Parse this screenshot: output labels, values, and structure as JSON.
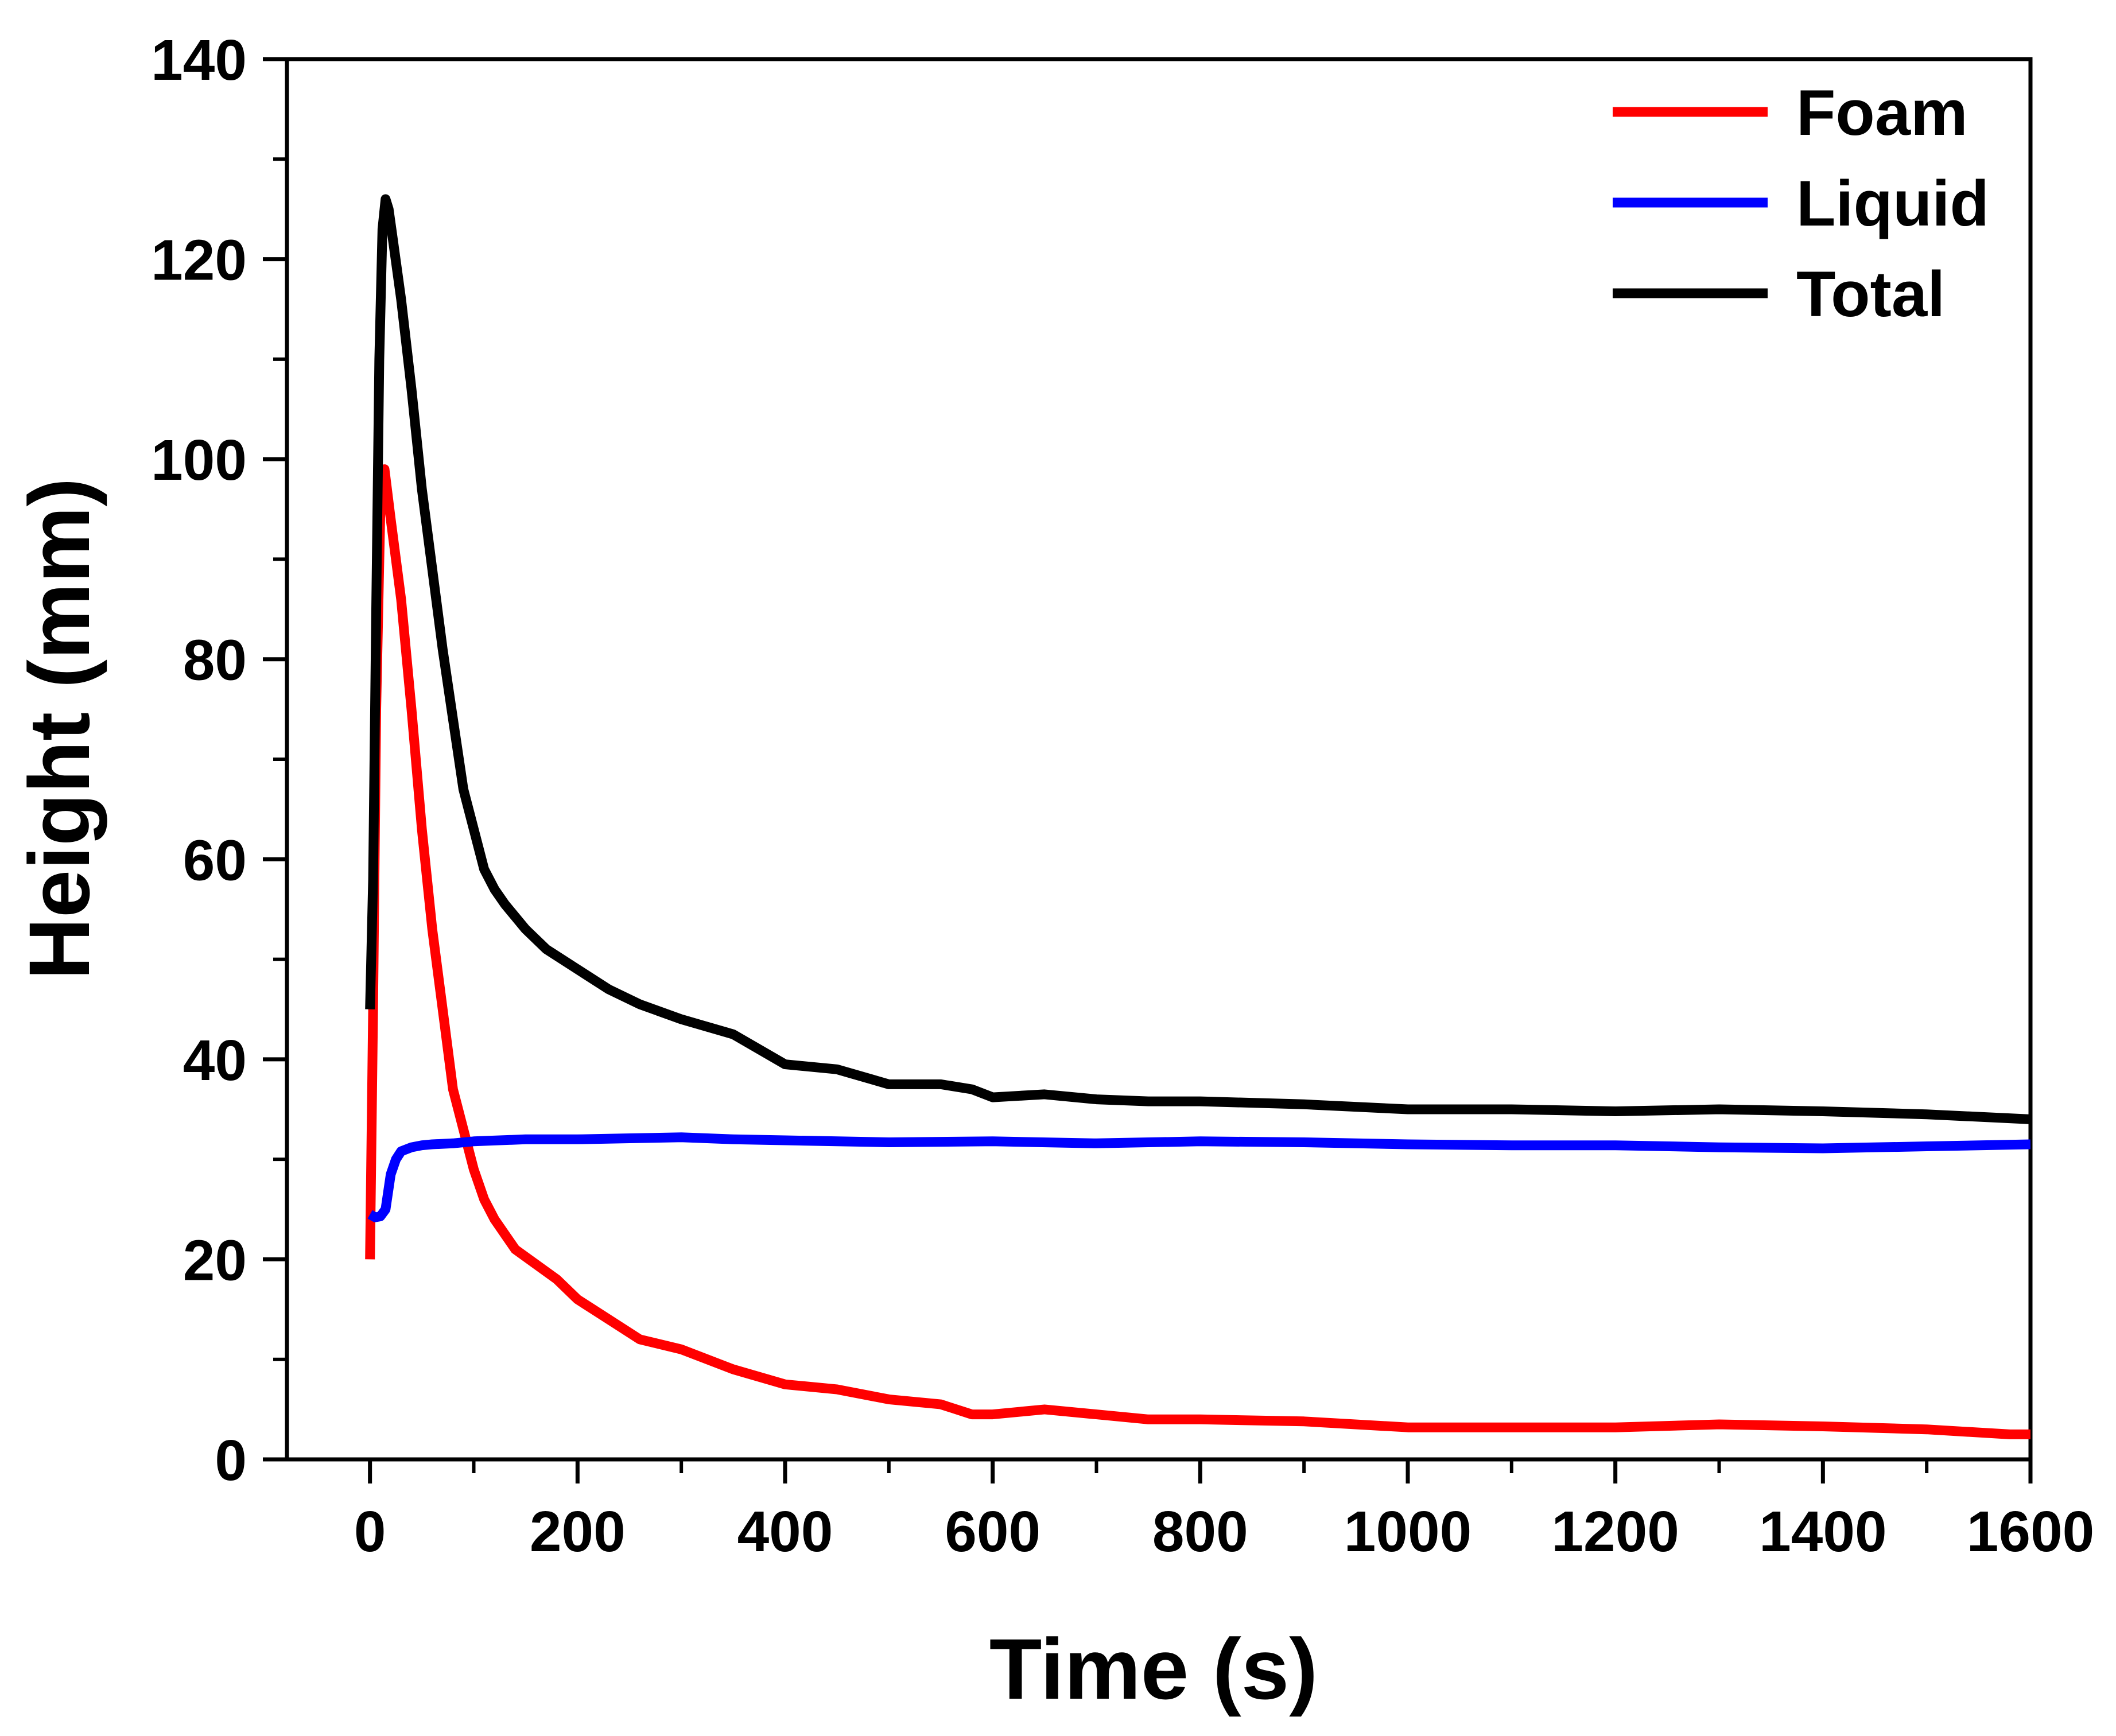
{
  "chart_data": {
    "type": "line",
    "title": "",
    "xlabel": "Time (s)",
    "ylabel": "Height (mm)",
    "xlim": [
      -80,
      1600
    ],
    "ylim": [
      0,
      140
    ],
    "x_ticks": [
      0,
      200,
      400,
      600,
      800,
      1000,
      1200,
      1400,
      1600
    ],
    "x_tick_labels": [
      "0",
      "200",
      "400",
      "600",
      "800",
      "1000",
      "1200",
      "1400",
      "1600"
    ],
    "y_ticks": [
      0,
      20,
      40,
      60,
      80,
      100,
      120,
      140
    ],
    "y_tick_labels": [
      "0",
      "20",
      "40",
      "60",
      "80",
      "100",
      "120",
      "140"
    ],
    "grid": false,
    "legend_position": "top-right",
    "series": [
      {
        "name": "Foam",
        "color": "#ff0000",
        "x": [
          0,
          3,
          6,
          10,
          14,
          20,
          30,
          40,
          50,
          60,
          70,
          80,
          90,
          100,
          110,
          120,
          140,
          160,
          180,
          200,
          230,
          260,
          300,
          350,
          400,
          450,
          500,
          550,
          580,
          600,
          650,
          700,
          750,
          800,
          900,
          1000,
          1100,
          1200,
          1300,
          1400,
          1500,
          1580,
          1600
        ],
        "y": [
          20,
          45,
          75,
          95,
          99,
          94,
          86,
          75,
          63,
          53,
          45,
          37,
          33,
          29,
          26,
          24,
          21,
          19.5,
          18,
          16,
          14,
          12,
          11,
          9,
          7.5,
          7,
          6,
          5.5,
          4.5,
          4.5,
          5,
          4.5,
          4,
          4,
          3.8,
          3.2,
          3.2,
          3.2,
          3.5,
          3.3,
          3,
          2.5,
          2.5
        ]
      },
      {
        "name": "Liquid",
        "color": "#0000ff",
        "x": [
          0,
          5,
          10,
          15,
          20,
          25,
          30,
          40,
          50,
          60,
          80,
          100,
          150,
          200,
          250,
          300,
          350,
          400,
          500,
          600,
          700,
          800,
          900,
          1000,
          1100,
          1200,
          1300,
          1400,
          1500,
          1600
        ],
        "y": [
          24.5,
          24.2,
          24.3,
          25,
          28.5,
          30,
          30.8,
          31.2,
          31.4,
          31.5,
          31.6,
          31.8,
          32,
          32,
          32.1,
          32.2,
          32,
          31.9,
          31.7,
          31.8,
          31.6,
          31.8,
          31.7,
          31.5,
          31.4,
          31.4,
          31.2,
          31.1,
          31.3,
          31.5
        ]
      },
      {
        "name": "Total",
        "color": "#000000",
        "x": [
          0,
          3,
          6,
          9,
          12,
          15,
          18,
          22,
          30,
          40,
          50,
          60,
          70,
          80,
          90,
          100,
          110,
          120,
          130,
          150,
          170,
          200,
          230,
          260,
          300,
          350,
          400,
          450,
          500,
          550,
          580,
          600,
          650,
          700,
          750,
          800,
          900,
          1000,
          1100,
          1200,
          1300,
          1400,
          1500,
          1600
        ],
        "y": [
          45,
          58,
          85,
          110,
          123,
          126,
          125,
          122,
          116,
          107,
          97,
          89,
          81,
          74,
          67,
          63,
          59,
          57,
          55.5,
          53,
          51,
          49,
          47,
          45.5,
          44,
          42.5,
          39.5,
          39,
          37.5,
          37.5,
          37,
          36.2,
          36.5,
          36,
          35.8,
          35.8,
          35.5,
          35,
          35,
          34.8,
          35,
          34.8,
          34.5,
          34
        ]
      }
    ]
  }
}
